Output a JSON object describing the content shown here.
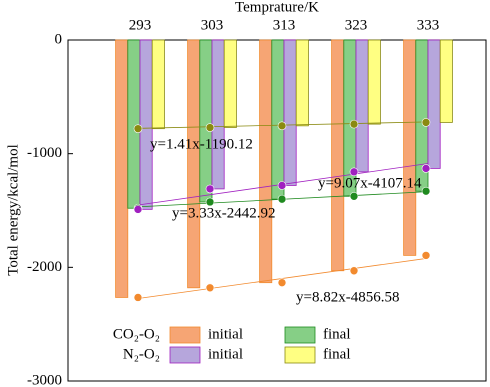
{
  "chart_data": {
    "type": "bar",
    "x_label": "Temprature/K",
    "y_label": "Total energy/kcal/mol",
    "categories": [
      "293",
      "303",
      "313",
      "323",
      "333"
    ],
    "ylim": [
      -3000,
      0
    ],
    "yticks": [
      0,
      -1000,
      -2000,
      -3000
    ],
    "groups": [
      {
        "name": "CO₂-O₂",
        "series": [
          {
            "name": "initial",
            "color": "#f6a574",
            "line_color": "#f28a2e",
            "values": [
              -2265,
              -2180,
              -2135,
              -2030,
              -1895
            ],
            "fit": {
              "slope": 8.82,
              "intercept": -4856.58,
              "label": "y=8.82x-4856.58"
            }
          },
          {
            "name": "final",
            "color": "#86cf86",
            "line_color": "#1f8a1f",
            "values": [
              -1480,
              -1425,
              -1400,
              -1375,
              -1330
            ],
            "fit": {
              "slope": 3.33,
              "intercept": -2442.92,
              "label": "y=3.33x-2442.92"
            }
          }
        ]
      },
      {
        "name": "N₂-O₂",
        "series": [
          {
            "name": "initial",
            "color": "#b6a6dc",
            "line_color": "#a020c0",
            "values": [
              -1490,
              -1310,
              -1280,
              -1160,
              -1130
            ],
            "fit": {
              "slope": 9.07,
              "intercept": -4107.14,
              "label": "y=9.07x-4107.14"
            }
          },
          {
            "name": "final",
            "color": "#ffff82",
            "line_color": "#8a8a10",
            "values": [
              -780,
              -770,
              -755,
              -740,
              -725
            ],
            "fit": {
              "slope": 1.41,
              "intercept": -1190.12,
              "label": "y=1.41x-1190.12"
            }
          }
        ]
      }
    ]
  }
}
